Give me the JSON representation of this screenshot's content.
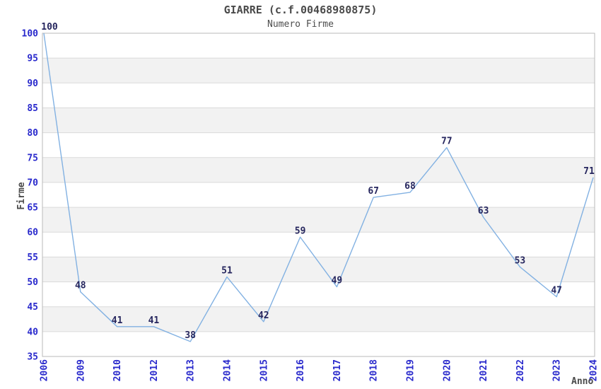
{
  "chart_data": {
    "type": "line",
    "title": "GIARRE (c.f.00468980875)",
    "subtitle": "Numero Firme",
    "xlabel": "Anno",
    "ylabel": "Firme",
    "categories": [
      "2006",
      "2009",
      "2010",
      "2012",
      "2013",
      "2014",
      "2015",
      "2016",
      "2017",
      "2018",
      "2019",
      "2020",
      "2021",
      "2022",
      "2023",
      "2024"
    ],
    "values": [
      100,
      48,
      41,
      41,
      38,
      51,
      42,
      59,
      49,
      67,
      68,
      77,
      63,
      53,
      47,
      71
    ],
    "ylim": [
      35,
      100
    ],
    "ytick_step": 5,
    "yticks": [
      35,
      40,
      45,
      50,
      55,
      60,
      65,
      70,
      75,
      80,
      85,
      90,
      95,
      100
    ],
    "grid": true,
    "alternating_bands": true,
    "legend": "none",
    "point_labels": true,
    "colors": {
      "line": "#82B1E2",
      "tick_label": "#2929CC",
      "point_label": "#26265E",
      "band": "#F2F2F2",
      "gridline": "#DADADA",
      "border": "#B9B9B9",
      "title": "#4A4A4A",
      "axis_title": "#4A4A4A"
    }
  }
}
